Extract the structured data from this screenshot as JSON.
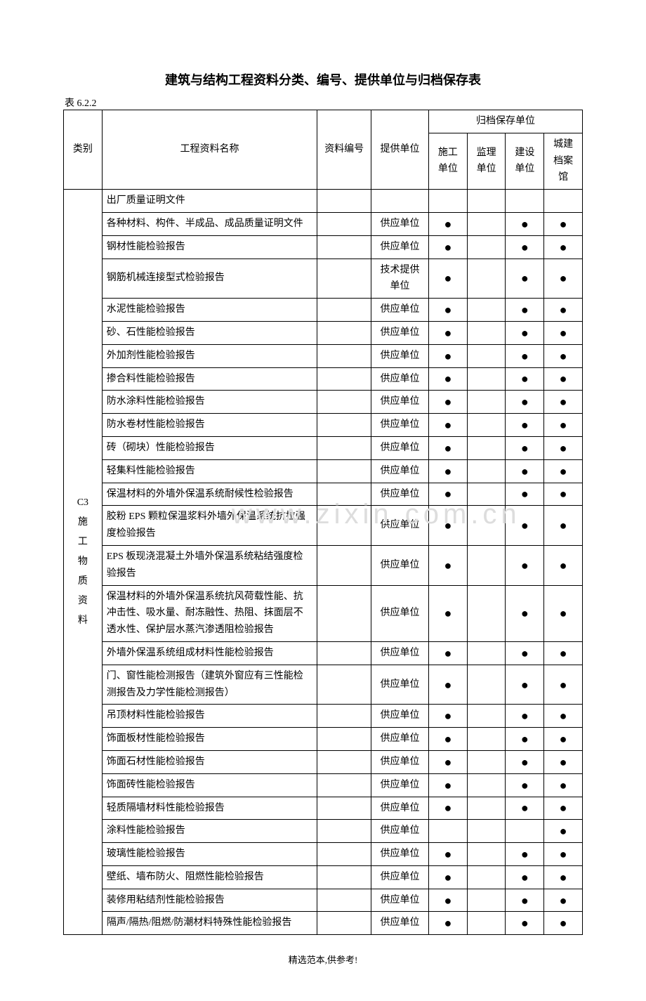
{
  "title": "建筑与结构工程资料分类、编号、提供单位与归档保存表",
  "tableNumber": "表 6.2.2",
  "watermark": "www.zixin.com.cn",
  "footer": "精选范本,供参考!",
  "headers": {
    "category": "类别",
    "materialName": "工程资料名称",
    "materialNumber": "资料编号",
    "provider": "提供单位",
    "archiveUnit": "归档保存单位",
    "construction": "施工单位",
    "supervision": "监理单位",
    "build": "建设单位",
    "cityArchive": "城建档案馆"
  },
  "categoryLabel": "C3\n施\n工\n物\n质\n资\n料",
  "categoryLines": [
    "C3",
    "施",
    "工",
    "物",
    "质",
    "资",
    "料"
  ],
  "dot": "●",
  "rows": [
    {
      "name": "出厂质量证明文件",
      "number": "",
      "provider": "",
      "d1": "",
      "d2": "",
      "d3": "",
      "d4": ""
    },
    {
      "name": "各种材料、构件、半成品、成品质量证明文件",
      "number": "",
      "provider": "供应单位",
      "d1": "●",
      "d2": "",
      "d3": "●",
      "d4": "●"
    },
    {
      "name": "钢材性能检验报告",
      "number": "",
      "provider": "供应单位",
      "d1": "●",
      "d2": "",
      "d3": "●",
      "d4": "●"
    },
    {
      "name": "钢筋机械连接型式检验报告",
      "number": "",
      "provider": "技术提供单位",
      "d1": "●",
      "d2": "",
      "d3": "●",
      "d4": "●"
    },
    {
      "name": "水泥性能检验报告",
      "number": "",
      "provider": "供应单位",
      "d1": "●",
      "d2": "",
      "d3": "●",
      "d4": "●"
    },
    {
      "name": "砂、石性能检验报告",
      "number": "",
      "provider": "供应单位",
      "d1": "●",
      "d2": "",
      "d3": "●",
      "d4": "●"
    },
    {
      "name": "外加剂性能检验报告",
      "number": "",
      "provider": "供应单位",
      "d1": "●",
      "d2": "",
      "d3": "●",
      "d4": "●"
    },
    {
      "name": "掺合料性能检验报告",
      "number": "",
      "provider": "供应单位",
      "d1": "●",
      "d2": "",
      "d3": "●",
      "d4": "●"
    },
    {
      "name": "防水涂料性能检验报告",
      "number": "",
      "provider": "供应单位",
      "d1": "●",
      "d2": "",
      "d3": "●",
      "d4": "●"
    },
    {
      "name": "防水卷材性能检验报告",
      "number": "",
      "provider": "供应单位",
      "d1": "●",
      "d2": "",
      "d3": "●",
      "d4": "●"
    },
    {
      "name": "砖（砌块）性能检验报告",
      "number": "",
      "provider": "供应单位",
      "d1": "●",
      "d2": "",
      "d3": "●",
      "d4": "●"
    },
    {
      "name": "轻集料性能检验报告",
      "number": "",
      "provider": "供应单位",
      "d1": "●",
      "d2": "",
      "d3": "●",
      "d4": "●"
    },
    {
      "name": "保温材料的外墙外保温系统耐候性检验报告",
      "number": "",
      "provider": "供应单位",
      "d1": "●",
      "d2": "",
      "d3": "●",
      "d4": "●"
    },
    {
      "name": "胶粉 EPS 颗粒保温浆料外墙外保温系统抗拉强度检验报告",
      "number": "",
      "provider": "供应单位",
      "d1": "●",
      "d2": "",
      "d3": "●",
      "d4": "●"
    },
    {
      "name": "EPS 板现浇混凝土外墙外保温系统粘结强度检验报告",
      "number": "",
      "provider": "供应单位",
      "d1": "●",
      "d2": "",
      "d3": "●",
      "d4": "●"
    },
    {
      "name": "保温材料的外墙外保温系统抗风荷载性能、抗冲击性、吸水量、耐冻融性、热阻、抹面层不透水性、保护层水蒸汽渗透阻检验报告",
      "number": "",
      "provider": "供应单位",
      "d1": "●",
      "d2": "",
      "d3": "●",
      "d4": "●"
    },
    {
      "name": "外墙外保温系统组成材料性能检验报告",
      "number": "",
      "provider": "供应单位",
      "d1": "●",
      "d2": "",
      "d3": "●",
      "d4": "●"
    },
    {
      "name": "门、窗性能检测报告（建筑外窗应有三性能检测报告及力学性能检测报告）",
      "number": "",
      "provider": "供应单位",
      "d1": "●",
      "d2": "",
      "d3": "●",
      "d4": "●"
    },
    {
      "name": "吊顶材料性能检验报告",
      "number": "",
      "provider": "供应单位",
      "d1": "●",
      "d2": "",
      "d3": "●",
      "d4": "●"
    },
    {
      "name": "饰面板材性能检验报告",
      "number": "",
      "provider": "供应单位",
      "d1": "●",
      "d2": "",
      "d3": "●",
      "d4": "●"
    },
    {
      "name": "饰面石材性能检验报告",
      "number": "",
      "provider": "供应单位",
      "d1": "●",
      "d2": "",
      "d3": "●",
      "d4": "●"
    },
    {
      "name": "饰面砖性能检验报告",
      "number": "",
      "provider": "供应单位",
      "d1": "●",
      "d2": "",
      "d3": "●",
      "d4": "●"
    },
    {
      "name": "轻质隔墙材料性能检验报告",
      "number": "",
      "provider": "供应单位",
      "d1": "●",
      "d2": "",
      "d3": "●",
      "d4": "●"
    },
    {
      "name": "涂料性能检验报告",
      "number": "",
      "provider": "供应单位",
      "d1": "",
      "d2": "",
      "d3": "",
      "d4": "●"
    },
    {
      "name": "玻璃性能检验报告",
      "number": "",
      "provider": "供应单位",
      "d1": "●",
      "d2": "",
      "d3": "●",
      "d4": "●"
    },
    {
      "name": "壁纸、墙布防火、阻燃性能检验报告",
      "number": "",
      "provider": "供应单位",
      "d1": "●",
      "d2": "",
      "d3": "●",
      "d4": "●"
    },
    {
      "name": "装修用粘结剂性能检验报告",
      "number": "",
      "provider": "供应单位",
      "d1": "●",
      "d2": "",
      "d3": "●",
      "d4": "●"
    },
    {
      "name": "隔声/隔热/阻燃/防潮材料特殊性能检验报告",
      "number": "",
      "provider": "供应单位",
      "d1": "●",
      "d2": "",
      "d3": "●",
      "d4": "●"
    }
  ]
}
